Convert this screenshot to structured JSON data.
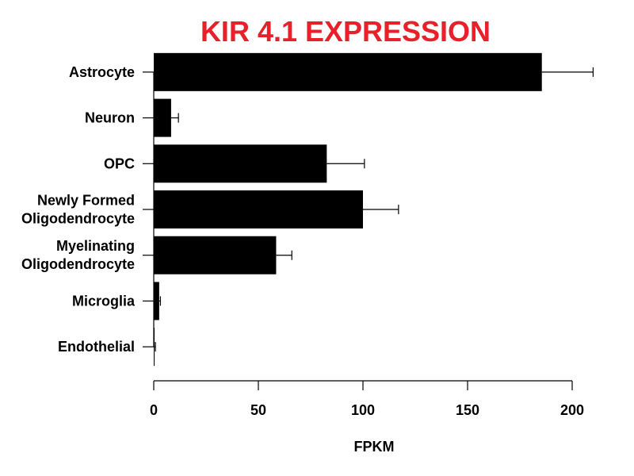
{
  "colors": {
    "title": "#e8202a",
    "bar": "#000000",
    "axis": "#000000",
    "text": "#000000"
  },
  "chart_data": {
    "type": "bar",
    "orientation": "horizontal",
    "title": "KIR 4.1 EXPRESSION",
    "xlabel": "FPKM",
    "ylabel": "",
    "categories": [
      [
        "Astrocyte"
      ],
      [
        "Neuron"
      ],
      [
        "OPC"
      ],
      [
        "Newly Formed",
        "Oligodendrocyte"
      ],
      [
        "Myelinating",
        "Oligodendrocyte"
      ],
      [
        "Microglia"
      ],
      [
        "Endothelial"
      ]
    ],
    "values": [
      185.5,
      8.3,
      82.7,
      100.0,
      58.5,
      2.6,
      0.4
    ],
    "error": [
      24.5,
      3.5,
      18.0,
      17.0,
      7.5,
      0.6,
      0.4
    ],
    "xlim": [
      0,
      200
    ],
    "xticks": [
      0,
      50,
      100,
      150,
      200
    ],
    "grid": false,
    "error_bars": true
  }
}
